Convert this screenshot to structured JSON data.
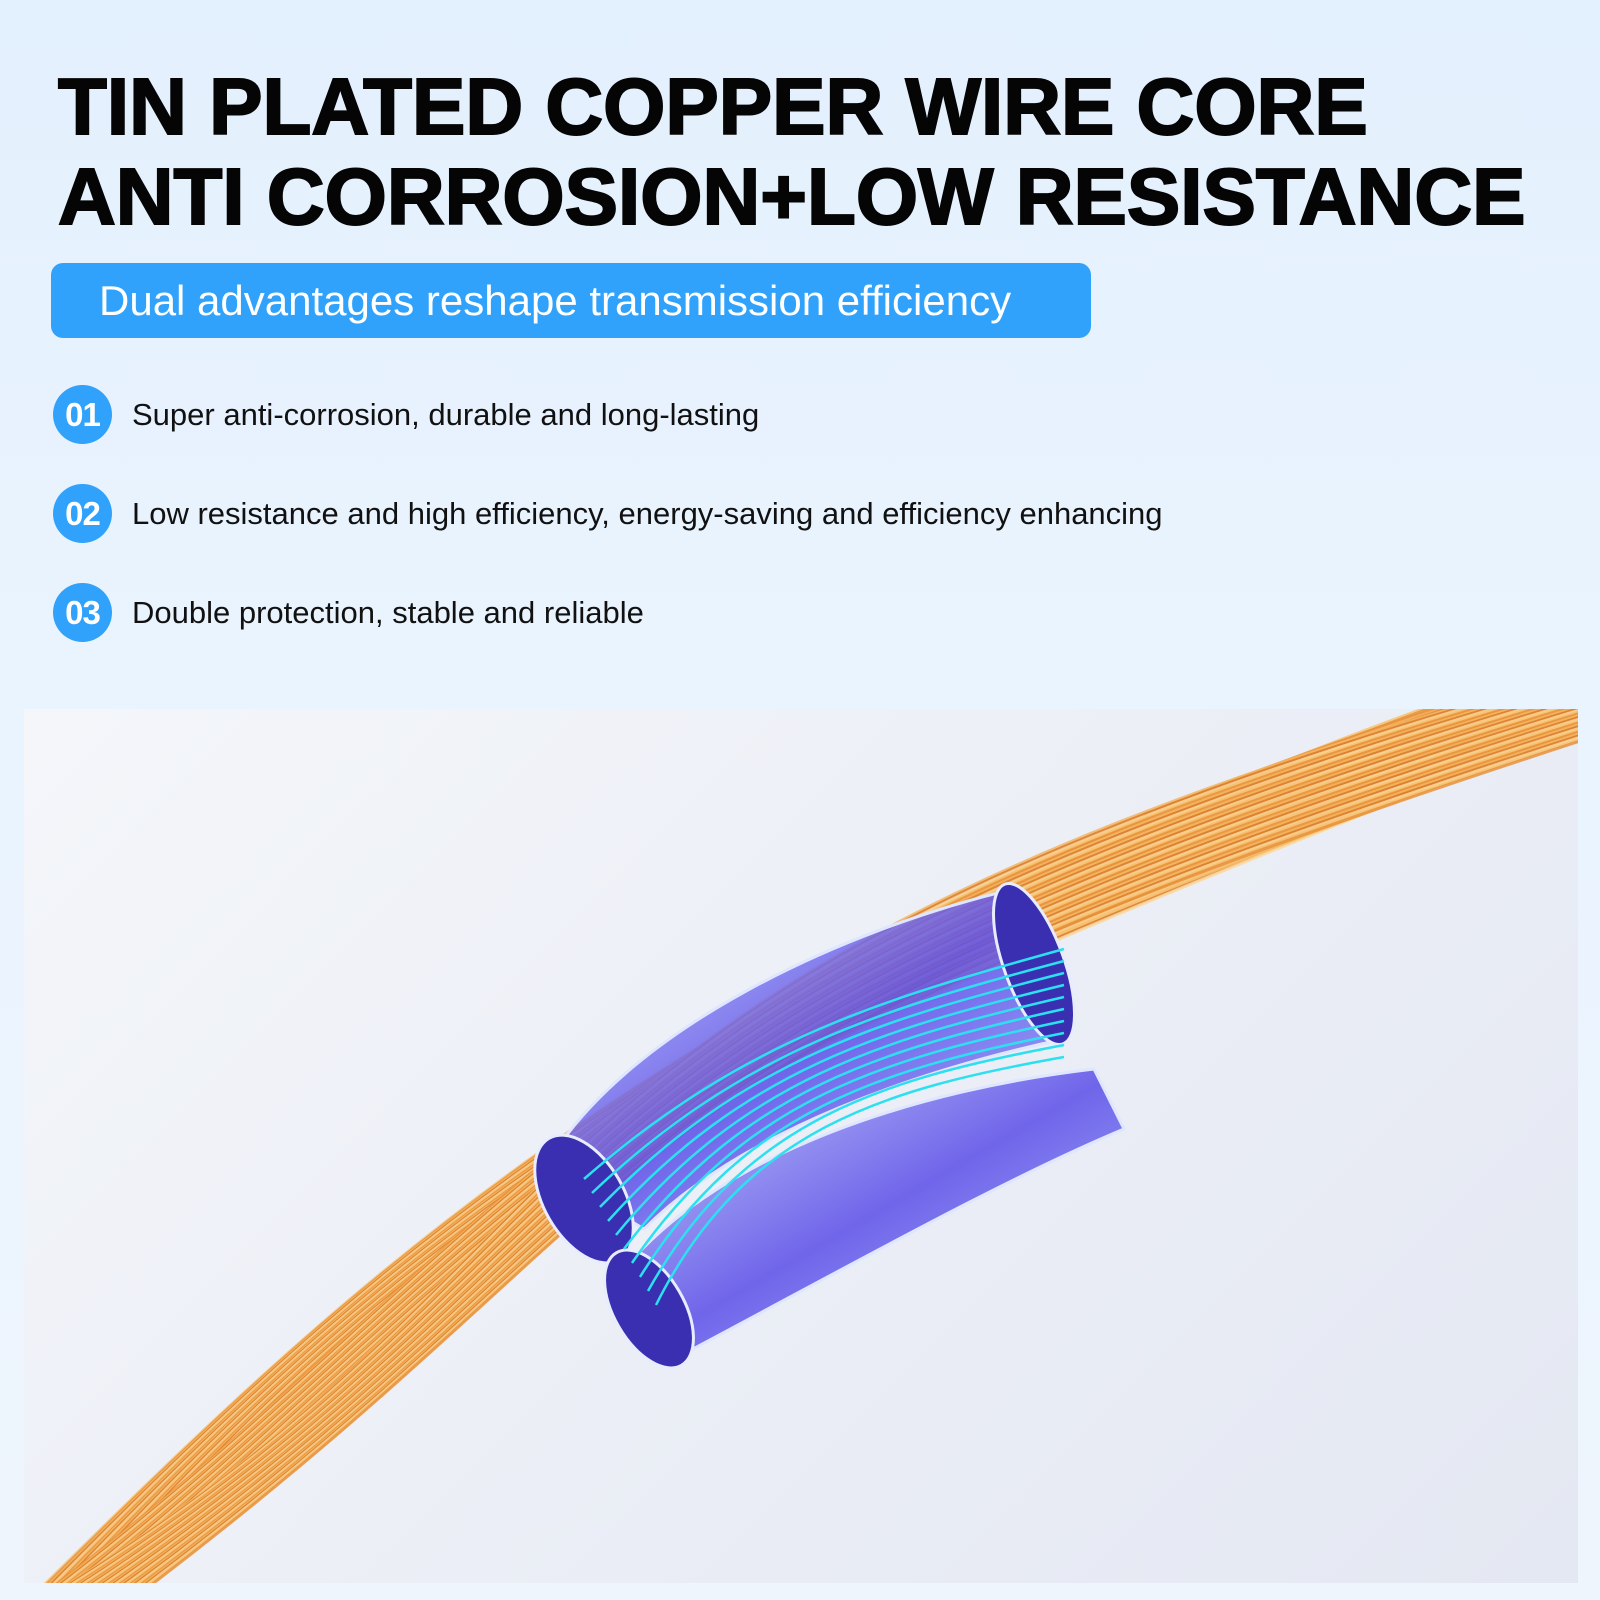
{
  "headline": {
    "line1": "TIN PLATED COPPER WIRE CORE",
    "line2": "ANTI CORROSION+LOW RESISTANCE"
  },
  "subtitle_badge": "Dual advantages reshape transmission efficiency",
  "features": [
    {
      "number": "01",
      "text": "Super anti-corrosion, durable and long-lasting"
    },
    {
      "number": "02",
      "text": "Low resistance and high efficiency, energy-saving and efficiency enhancing"
    },
    {
      "number": "03",
      "text": "Double protection, stable and reliable"
    }
  ],
  "colors": {
    "accent": "#30a2fb",
    "copper": "#e8913a",
    "glow": "#2de0f0",
    "tube": "#6a5cf0"
  },
  "illustration": "twisted-copper-wire-with-blue-tube"
}
